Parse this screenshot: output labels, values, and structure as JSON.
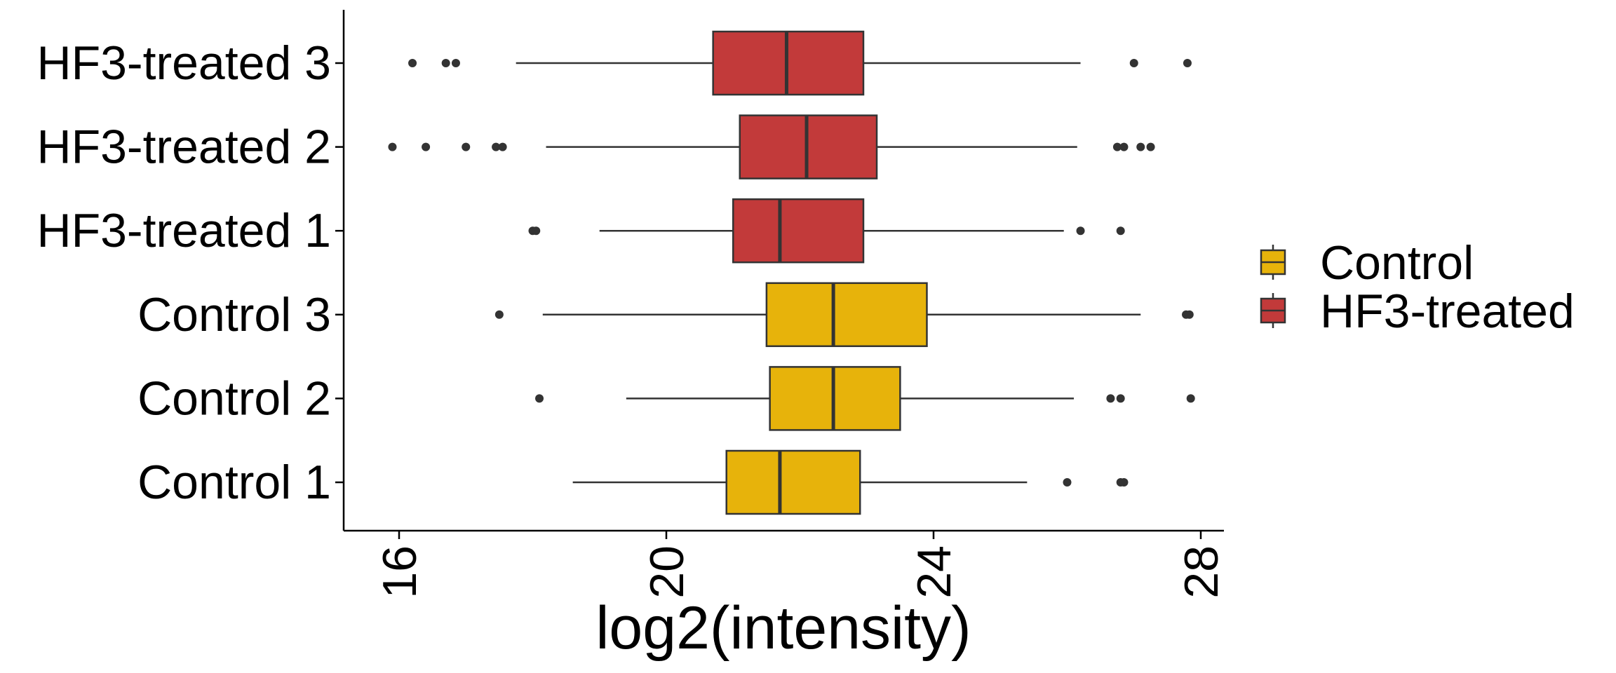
{
  "chart_data": {
    "type": "boxplot",
    "orientation": "horizontal",
    "title": "",
    "xlabel": "log2(intensity)",
    "ylabel": "",
    "xlim": [
      15.5,
      28.5
    ],
    "xticks": [
      "16",
      "20",
      "24",
      "28"
    ],
    "grid": false,
    "legend_position": "right",
    "legend": [
      {
        "name": "Control",
        "color": "#E7B30B"
      },
      {
        "name": "HF3-treated",
        "color": "#C23A3A"
      }
    ],
    "categories": [
      "Control 1",
      "Control 2",
      "Control 3",
      "HF3-treated 1",
      "HF3-treated 2",
      "HF3-treated 3"
    ],
    "boxes": [
      {
        "label": "Control 1",
        "group": "Control",
        "whisker_low": 18.6,
        "q1": 20.9,
        "median": 21.7,
        "q3": 22.9,
        "whisker_high": 25.4,
        "outliers": [
          26.0,
          26.8,
          26.85
        ]
      },
      {
        "label": "Control 2",
        "group": "Control",
        "whisker_low": 19.4,
        "q1": 21.55,
        "median": 22.5,
        "q3": 23.5,
        "whisker_high": 26.1,
        "outliers": [
          18.1,
          26.65,
          26.8,
          27.85
        ]
      },
      {
        "label": "Control 3",
        "group": "Control",
        "whisker_low": 18.15,
        "q1": 21.5,
        "median": 22.5,
        "q3": 23.9,
        "whisker_high": 27.1,
        "outliers": [
          17.5,
          27.78,
          27.83
        ]
      },
      {
        "label": "HF3-treated 1",
        "group": "HF3-treated",
        "whisker_low": 19.0,
        "q1": 21.0,
        "median": 21.7,
        "q3": 22.95,
        "whisker_high": 25.95,
        "outliers": [
          18.0,
          18.05,
          26.2,
          26.8
        ]
      },
      {
        "label": "HF3-treated 2",
        "group": "HF3-treated",
        "whisker_low": 18.2,
        "q1": 21.1,
        "median": 22.1,
        "q3": 23.15,
        "whisker_high": 26.15,
        "outliers": [
          15.9,
          16.4,
          17.0,
          17.45,
          17.55,
          26.75,
          26.85,
          27.1,
          27.25
        ]
      },
      {
        "label": "HF3-treated 3",
        "group": "HF3-treated",
        "whisker_low": 17.75,
        "q1": 20.7,
        "median": 21.8,
        "q3": 22.95,
        "whisker_high": 26.2,
        "outliers": [
          16.2,
          16.7,
          16.85,
          27.0,
          27.8
        ]
      }
    ]
  }
}
